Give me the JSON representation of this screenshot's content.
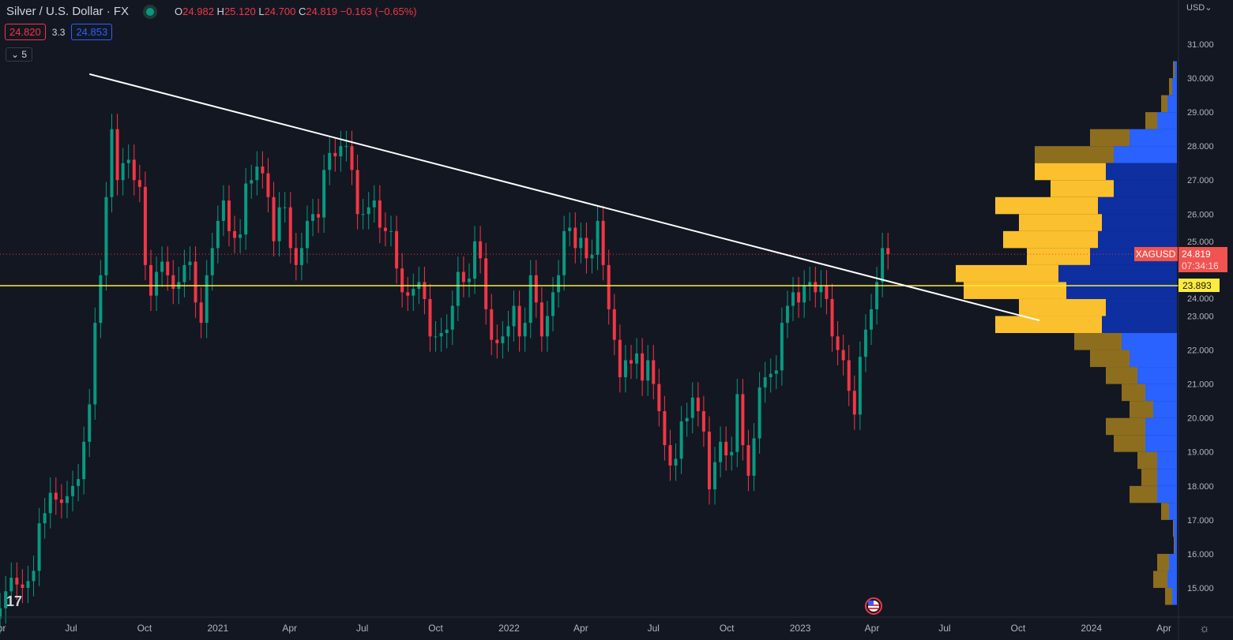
{
  "header": {
    "title": "Silver / U.S. Dollar · FX",
    "market_status": "open",
    "ohlc": {
      "o_label": "O",
      "o": "24.982",
      "h_label": "H",
      "h": "25.120",
      "l_label": "L",
      "l": "24.700",
      "c_label": "C",
      "c": "24.819",
      "change": "−0.163 (−0.65%)"
    },
    "sell_price": "24.820",
    "spread": "3.3",
    "buy_price": "24.853",
    "indicators_toggle": "5"
  },
  "price_axis": {
    "currency": "USD",
    "ticks": [
      "31.000",
      "30.000",
      "29.000",
      "28.000",
      "27.000",
      "26.000",
      "25.000",
      "24.000",
      "23.000",
      "22.000",
      "21.000",
      "20.000",
      "19.000",
      "18.000",
      "17.000",
      "16.000",
      "15.000"
    ]
  },
  "time_axis": {
    "ticks": [
      {
        "label": "Apr",
        "date": "2020-04-01"
      },
      {
        "label": "Jul",
        "date": "2020-07-01"
      },
      {
        "label": "Oct",
        "date": "2020-10-01"
      },
      {
        "label": "2021",
        "date": "2021-01-01"
      },
      {
        "label": "Apr",
        "date": "2021-04-01"
      },
      {
        "label": "Jul",
        "date": "2021-07-01"
      },
      {
        "label": "Oct",
        "date": "2021-10-01"
      },
      {
        "label": "2022",
        "date": "2022-01-01"
      },
      {
        "label": "Apr",
        "date": "2022-04-01"
      },
      {
        "label": "Jul",
        "date": "2022-07-01"
      },
      {
        "label": "Oct",
        "date": "2022-10-01"
      },
      {
        "label": "2023",
        "date": "2023-01-01"
      },
      {
        "label": "Apr",
        "date": "2023-04-01"
      },
      {
        "label": "Jul",
        "date": "2023-07-01"
      },
      {
        "label": "Oct",
        "date": "2023-10-01"
      },
      {
        "label": "2024",
        "date": "2024-01-01"
      },
      {
        "label": "Apr",
        "date": "2024-04-01"
      }
    ]
  },
  "symbol_label": "XAGUSD",
  "last_price": "24.819",
  "countdown": "07:34:16",
  "level_label": "23.893",
  "colors": {
    "up": "#089981",
    "down": "#f23645",
    "bg": "#131722",
    "level": "#ffeb3b",
    "trendline": "#ffffff",
    "vp_up": "#2962ff",
    "vp_down": "#fbc02d",
    "vp_up_out": "#2962ff",
    "vp_down_out": "#8d6e1f",
    "vp_va_up": "#0d2fa0"
  },
  "chart_data": {
    "type": "candlestick",
    "symbol": "XAGUSD",
    "ylim": [
      14.3,
      31.8
    ],
    "xlim": [
      "2020-03-28",
      "2024-04-20"
    ],
    "first_bar": "2020-04-03",
    "interval_days": 7,
    "closes": [
      14.4,
      14.9,
      15.3,
      15.1,
      15.0,
      15.2,
      15.5,
      16.9,
      17.2,
      17.8,
      17.6,
      17.5,
      17.7,
      18.0,
      18.2,
      19.3,
      20.4,
      22.8,
      24.2,
      26.5,
      28.5,
      27.0,
      27.5,
      27.6,
      27.0,
      26.8,
      24.5,
      23.6,
      24.3,
      24.6,
      24.2,
      23.8,
      24.0,
      24.5,
      24.6,
      23.4,
      22.8,
      24.2,
      25.0,
      25.8,
      26.4,
      25.5,
      25.3,
      25.4,
      26.9,
      27.0,
      27.4,
      27.2,
      26.5,
      25.2,
      26.2,
      26.2,
      25.0,
      24.5,
      25.0,
      25.8,
      26.0,
      25.9,
      27.3,
      27.8,
      27.7,
      28.0,
      28.0,
      27.3,
      26.0,
      26.0,
      26.2,
      26.4,
      25.6,
      25.5,
      25.5,
      24.4,
      23.7,
      23.6,
      23.8,
      24.0,
      23.5,
      22.4,
      22.4,
      22.5,
      22.6,
      23.3,
      24.3,
      24.0,
      24.1,
      25.2,
      24.7,
      23.2,
      22.3,
      22.2,
      22.4,
      22.7,
      23.3,
      22.4,
      22.8,
      24.2,
      23.4,
      22.4,
      23.0,
      23.7,
      24.2,
      25.5,
      25.6,
      25.0,
      25.3,
      24.7,
      24.8,
      25.8,
      24.5,
      23.2,
      22.3,
      21.2,
      21.7,
      21.6,
      21.9,
      21.1,
      21.7,
      21.0,
      20.2,
      19.2,
      18.6,
      18.8,
      19.9,
      20.0,
      20.6,
      20.2,
      19.6,
      17.9,
      18.7,
      19.3,
      18.9,
      19.0,
      20.7,
      19.2,
      18.3,
      19.4,
      20.9,
      21.2,
      21.3,
      21.4,
      22.8,
      23.3,
      23.7,
      23.4,
      23.9,
      24.0,
      23.7,
      23.9,
      23.5,
      22.4,
      22.0,
      21.7,
      20.8,
      20.1,
      21.8,
      22.6,
      23.2,
      24.0,
      25.0,
      24.819
    ],
    "trendline": {
      "from": {
        "date": "2020-07-24",
        "price": 30.12
      },
      "to": {
        "date": "2023-10-28",
        "price": 22.87
      }
    },
    "horizontal_level": 23.893,
    "last_price": 24.819,
    "volume_profile": {
      "value_area": [
        22.1,
        27.5
      ],
      "bins": [
        {
          "price": 30.0,
          "total": 5,
          "up": 3
        },
        {
          "price": 29.5,
          "total": 10,
          "up": 6
        },
        {
          "price": 29.0,
          "total": 20,
          "up": 12
        },
        {
          "price": 28.5,
          "total": 40,
          "up": 25
        },
        {
          "price": 28.0,
          "total": 110,
          "up": 60
        },
        {
          "price": 27.5,
          "total": 180,
          "up": 80
        },
        {
          "price": 27.0,
          "total": 180,
          "up": 90
        },
        {
          "price": 26.5,
          "total": 160,
          "up": 80
        },
        {
          "price": 26.0,
          "total": 230,
          "up": 100
        },
        {
          "price": 25.5,
          "total": 200,
          "up": 95
        },
        {
          "price": 25.0,
          "total": 220,
          "up": 100
        },
        {
          "price": 24.5,
          "total": 190,
          "up": 110
        },
        {
          "price": 24.0,
          "total": 280,
          "up": 150
        },
        {
          "price": 23.5,
          "total": 270,
          "up": 140
        },
        {
          "price": 23.0,
          "total": 200,
          "up": 90
        },
        {
          "price": 22.5,
          "total": 230,
          "up": 95
        },
        {
          "price": 22.0,
          "total": 130,
          "up": 70
        },
        {
          "price": 21.5,
          "total": 110,
          "up": 60
        },
        {
          "price": 21.0,
          "total": 90,
          "up": 50
        },
        {
          "price": 20.5,
          "total": 70,
          "up": 40
        },
        {
          "price": 20.0,
          "total": 60,
          "up": 30
        },
        {
          "price": 19.5,
          "total": 90,
          "up": 40
        },
        {
          "price": 19.0,
          "total": 80,
          "up": 40
        },
        {
          "price": 18.5,
          "total": 50,
          "up": 25
        },
        {
          "price": 18.0,
          "total": 45,
          "up": 25
        },
        {
          "price": 17.5,
          "total": 60,
          "up": 25
        },
        {
          "price": 17.0,
          "total": 20,
          "up": 10
        },
        {
          "price": 16.5,
          "total": 5,
          "up": 4
        },
        {
          "price": 16.0,
          "total": 4,
          "up": 3
        },
        {
          "price": 15.5,
          "total": 25,
          "up": 10
        },
        {
          "price": 15.0,
          "total": 30,
          "up": 12
        },
        {
          "price": 14.5,
          "total": 15,
          "up": 6
        }
      ]
    }
  }
}
